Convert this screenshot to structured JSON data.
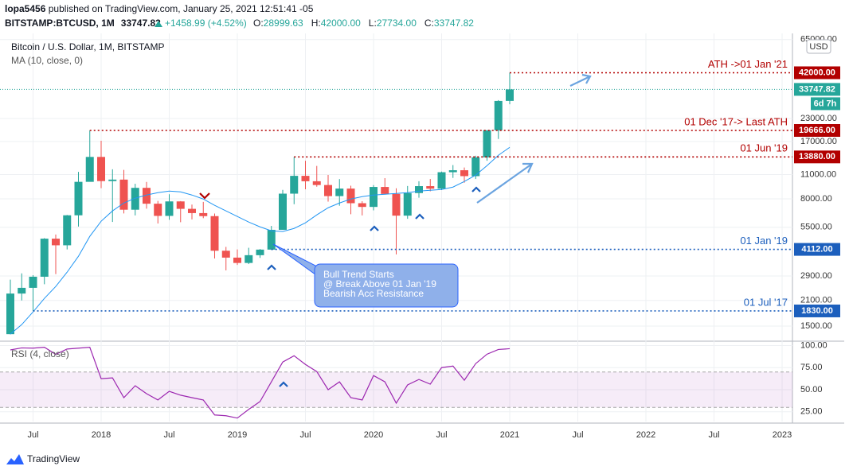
{
  "header": {
    "publisher": "lopa5456",
    "published": "published on TradingView.com, January 25, 2021 12:51:41 -05",
    "symbol": "BITSTAMP:BTCUSD, 1M",
    "last": "33747.82",
    "change": "+1458.99 (+4.52%)",
    "ohlc": [
      {
        "label": "O:",
        "value": "28999.63"
      },
      {
        "label": "H:",
        "value": "42000.00"
      },
      {
        "label": "L:",
        "value": "27734.00"
      },
      {
        "label": "C:",
        "value": "33747.82"
      }
    ]
  },
  "chart_data": [
    {
      "type": "candlestick",
      "title": "Bitcoin / U.S. Dollar, 1M, BITSTAMP",
      "currency": "USD",
      "categories": [
        null,
        null,
        "Jul",
        null,
        null,
        null,
        null,
        null,
        "2018",
        null,
        null,
        null,
        null,
        null,
        "Jul",
        null,
        null,
        null,
        null,
        null,
        "2019",
        null,
        null,
        null,
        null,
        null,
        "Jul",
        null,
        null,
        null,
        null,
        null,
        "2020",
        null,
        null,
        null,
        null,
        null,
        "Jul",
        null,
        null,
        null,
        null,
        null,
        "2021"
      ],
      "future_ticks": [
        "Jul",
        "2022",
        "Jul",
        "2023"
      ],
      "open": [
        1348,
        2300,
        2480,
        2870,
        4735,
        4340,
        6440,
        10000,
        13880,
        10100,
        10300,
        6930,
        9240,
        7500,
        6390,
        7730,
        7010,
        6630,
        6370,
        4040,
        3690,
        3440,
        3810,
        4100,
        5320,
        8560,
        10820,
        10080,
        9590,
        8290,
        9150,
        7550,
        7190,
        9350,
        8530,
        6410,
        8630,
        9450,
        9140,
        11350,
        11650,
        10780,
        13800,
        19710,
        28999.63
      ],
      "high": [
        2760,
        3000,
        2930,
        4770,
        5000,
        6470,
        11400,
        19666,
        17170,
        11800,
        11700,
        9750,
        9990,
        7780,
        8490,
        7760,
        7410,
        7680,
        6590,
        4250,
        4112,
        4200,
        4130,
        5600,
        9000,
        13880,
        13200,
        12330,
        10950,
        10370,
        9500,
        7750,
        9580,
        10500,
        9190,
        9470,
        10080,
        10380,
        11440,
        12470,
        12070,
        14100,
        19480,
        29300,
        42000
      ],
      "low": [
        1345,
        2100,
        1830,
        2600,
        2970,
        4110,
        5550,
        10400,
        9200,
        5900,
        6600,
        6430,
        7030,
        5780,
        6070,
        5880,
        6100,
        6200,
        3650,
        3120,
        3350,
        3390,
        3680,
        4080,
        5330,
        7450,
        9070,
        9380,
        7710,
        7300,
        6530,
        6430,
        6870,
        8460,
        3850,
        6150,
        8110,
        8830,
        8970,
        10530,
        9880,
        10380,
        13200,
        17580,
        27734
      ],
      "close": [
        2300,
        2480,
        2870,
        4735,
        4340,
        6440,
        10000,
        13880,
        10100,
        10300,
        6930,
        9240,
        7500,
        6390,
        7730,
        7010,
        6630,
        6370,
        4040,
        3690,
        3440,
        3810,
        4100,
        5320,
        8560,
        10820,
        10080,
        9590,
        8290,
        9150,
        7550,
        7190,
        9350,
        8530,
        6410,
        8630,
        9450,
        9140,
        11350,
        11650,
        10780,
        13800,
        19710,
        28990,
        33747.82
      ],
      "up_color": "#26a69a",
      "down_color": "#ef5350",
      "log_scale": true,
      "grid": true,
      "ylim": [
        1242,
        70490
      ],
      "yticks": [
        {
          "value": 1500,
          "label": "1500.00"
        },
        {
          "value": 2100,
          "label": "2100.00"
        },
        {
          "value": 2900,
          "label": "2900.00"
        },
        {
          "value": 5500,
          "label": "5500.00"
        },
        {
          "value": 8000,
          "label": "8000.00"
        },
        {
          "value": 11000,
          "label": "11000.00"
        },
        {
          "value": 17000,
          "label": "17000.00"
        },
        {
          "value": 23000,
          "label": "23000.00"
        },
        {
          "value": 65000,
          "label": "65000.00"
        }
      ],
      "ma": {
        "name": "MA (10, close, 0)",
        "color": "#2196f3",
        "values": [
          1348,
          1528,
          1806,
          2158,
          2525,
          3047,
          3757,
          4881,
          5955,
          6822,
          7570,
          8063,
          8409,
          8675,
          8859,
          8767,
          8409,
          7977,
          7340,
          6822,
          6339,
          5891,
          5532,
          5251,
          5199,
          5418,
          5830,
          6473,
          7110,
          7570,
          7977,
          8234,
          8409,
          8493,
          8585,
          8675,
          8859,
          8953,
          9045,
          9332,
          10043,
          10920,
          12381,
          14183,
          15744
        ]
      },
      "last_price": {
        "value": 33747.82,
        "label": "33747.82",
        "countdown": "6d 7h",
        "color": "#26a69a"
      },
      "levels": [
        {
          "value": 42000,
          "label": "42000.00",
          "note": "ATH ->01 Jan '21",
          "color": "#b20000"
        },
        {
          "value": 19666,
          "label": "19666.00",
          "note": "01 Dec '17-> Last ATH",
          "color": "#b20000"
        },
        {
          "value": 13880,
          "label": "13880.00",
          "note": "01 Jun '19",
          "color": "#b20000"
        },
        {
          "value": 4112,
          "label": "4112.00",
          "note": "01 Jan '19",
          "color": "#1c5fbd"
        },
        {
          "value": 1830,
          "label": "1830.00",
          "note": "01 Jul '17",
          "color": "#1c5fbd"
        }
      ],
      "annotation": [
        "Bull Trend Starts",
        "@ Break Above 01 Jan '19",
        "Bearish Acc Resistance"
      ]
    },
    {
      "type": "line",
      "name": "RSI (4, close)",
      "color": "#9c27b0",
      "ylim": [
        14,
        104
      ],
      "yticks": [
        {
          "value": 25,
          "label": "25.00"
        },
        {
          "value": 50,
          "label": "50.00"
        },
        {
          "value": 75,
          "label": "75.00"
        },
        {
          "value": 100,
          "label": "100.00"
        }
      ],
      "band": [
        30,
        70
      ],
      "values": [
        95,
        97.3,
        97,
        98,
        90,
        96,
        97,
        98,
        62.5,
        63.4,
        41,
        54.5,
        45.5,
        38.4,
        48.2,
        43.8,
        41,
        38.4,
        21.4,
        20.5,
        17.9,
        27.7,
        36.6,
        58.9,
        81.3,
        88.4,
        78.6,
        70.5,
        50,
        58.9,
        41,
        38.4,
        66,
        58.9,
        34.8,
        55.4,
        61.6,
        56.3,
        75,
        76.8,
        60.7,
        79.5,
        90.2,
        95.5,
        96.4
      ]
    }
  ],
  "footer": {
    "brand": "TradingView"
  }
}
